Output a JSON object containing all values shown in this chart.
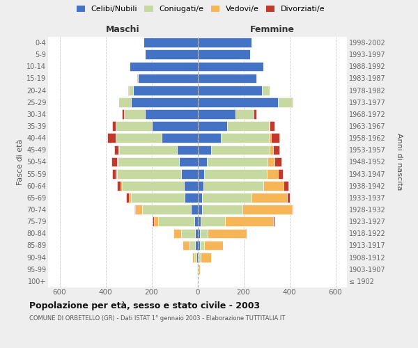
{
  "age_groups": [
    "100+",
    "95-99",
    "90-94",
    "85-89",
    "80-84",
    "75-79",
    "70-74",
    "65-69",
    "60-64",
    "55-59",
    "50-54",
    "45-49",
    "40-44",
    "35-39",
    "30-34",
    "25-29",
    "20-24",
    "15-19",
    "10-14",
    "5-9",
    "0-4"
  ],
  "birth_years": [
    "≤ 1902",
    "1903-1907",
    "1908-1912",
    "1913-1917",
    "1918-1922",
    "1923-1927",
    "1928-1932",
    "1933-1937",
    "1938-1942",
    "1943-1947",
    "1948-1952",
    "1953-1957",
    "1958-1962",
    "1963-1967",
    "1968-1972",
    "1973-1977",
    "1978-1982",
    "1983-1987",
    "1988-1992",
    "1993-1997",
    "1998-2002"
  ],
  "male": {
    "celibi": [
      2,
      2,
      5,
      10,
      10,
      15,
      30,
      55,
      60,
      70,
      80,
      90,
      155,
      200,
      230,
      290,
      280,
      260,
      295,
      230,
      235
    ],
    "coniugati": [
      0,
      2,
      8,
      25,
      60,
      155,
      210,
      235,
      270,
      280,
      265,
      250,
      200,
      155,
      90,
      55,
      20,
      5,
      2,
      0,
      0
    ],
    "vedovi": [
      0,
      2,
      10,
      30,
      35,
      20,
      30,
      10,
      5,
      5,
      5,
      3,
      2,
      0,
      0,
      0,
      0,
      0,
      0,
      0,
      0
    ],
    "divorziati": [
      0,
      0,
      0,
      0,
      0,
      5,
      5,
      10,
      15,
      15,
      25,
      20,
      35,
      15,
      10,
      0,
      3,
      0,
      0,
      0,
      0
    ]
  },
  "female": {
    "nubili": [
      2,
      3,
      5,
      10,
      10,
      15,
      20,
      20,
      25,
      30,
      40,
      60,
      100,
      130,
      165,
      350,
      280,
      255,
      285,
      230,
      235
    ],
    "coniugate": [
      0,
      2,
      8,
      20,
      35,
      105,
      175,
      215,
      260,
      270,
      265,
      255,
      210,
      180,
      80,
      60,
      35,
      5,
      2,
      0,
      0
    ],
    "vedove": [
      0,
      5,
      45,
      80,
      170,
      210,
      215,
      155,
      90,
      50,
      30,
      15,
      10,
      5,
      0,
      0,
      0,
      0,
      0,
      0,
      0
    ],
    "divorziate": [
      0,
      0,
      0,
      0,
      0,
      5,
      5,
      10,
      20,
      20,
      30,
      25,
      35,
      20,
      10,
      3,
      0,
      0,
      0,
      0,
      0
    ]
  },
  "colors": {
    "celibi": "#4472C4",
    "coniugati": "#C5D9A0",
    "vedovi": "#F6B556",
    "divorziati": "#C0392B"
  },
  "xlim": 650,
  "title": "Popolazione per età, sesso e stato civile - 2003",
  "subtitle": "COMUNE DI ORBETELLO (GR) - Dati ISTAT 1° gennaio 2003 - Elaborazione TUTTITALIA.IT",
  "ylabel": "Fasce di età",
  "ylabel_right": "Anni di nascita",
  "xlabel_left": "Maschi",
  "xlabel_right": "Femmine",
  "background_color": "#eeeeee",
  "plot_bg": "#ffffff"
}
